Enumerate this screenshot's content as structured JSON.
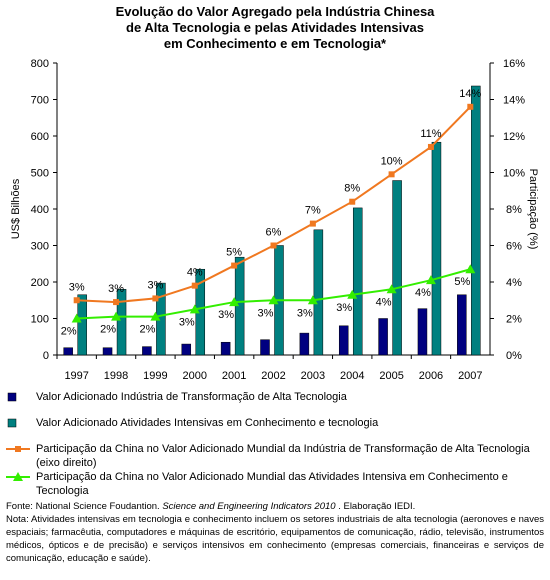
{
  "chart_data": {
    "type": "bar-line",
    "title": [
      "Evolução do Valor Agregado pela Indústria Chinesa",
      "de Alta Tecnologia e pelas Atividades Intensivas",
      "em Conhecimento e em Tecnologia*"
    ],
    "y_label": "US$ Bilhões",
    "y2_label": "Participação (%)",
    "categories": [
      "1997",
      "1998",
      "1999",
      "2000",
      "2001",
      "2002",
      "2003",
      "2004",
      "2005",
      "2006",
      "2007"
    ],
    "ylim": [
      0,
      800
    ],
    "yticks": [
      0,
      100,
      200,
      300,
      400,
      500,
      600,
      700,
      800
    ],
    "y2lim": [
      0,
      16
    ],
    "y2ticks": [
      {
        "value": 0,
        "label": "0%"
      },
      {
        "value": 2,
        "label": "2%"
      },
      {
        "value": 4,
        "label": "4%"
      },
      {
        "value": 6,
        "label": "6%"
      },
      {
        "value": 8,
        "label": "8%"
      },
      {
        "value": 10,
        "label": "10%"
      },
      {
        "value": 12,
        "label": "12%"
      },
      {
        "value": 14,
        "label": "14%"
      },
      {
        "value": 16,
        "label": "16%"
      }
    ],
    "series": [
      {
        "name": "Valor Adicionado Indústria de Transformação de Alta Tecnologia",
        "type": "bar",
        "color": "#000080",
        "values": [
          20,
          20,
          23,
          30,
          35,
          42,
          60,
          80,
          100,
          127,
          165
        ]
      },
      {
        "name": "Valor Adicionado Atividades Intensivas em Conhecimento e tecnologia",
        "type": "bar",
        "color": "#008080",
        "values": [
          165,
          180,
          197,
          235,
          268,
          300,
          343,
          403,
          478,
          583,
          737
        ]
      },
      {
        "name": "Participação da China no Valor Adicionado Mundial da Indústria de Transformação de Alta Tecnologia (eixo direito)",
        "type": "line",
        "axis": "y2",
        "color": "#f07820",
        "marker": "square",
        "values": [
          3.0,
          2.9,
          3.1,
          3.8,
          4.9,
          6.0,
          7.2,
          8.4,
          9.9,
          11.4,
          13.6
        ],
        "value_labels": [
          "3%",
          "3%",
          "3%",
          "4%",
          "5%",
          "6%",
          "7%",
          "8%",
          "10%",
          "11%",
          "14%"
        ]
      },
      {
        "name": "Participação da China no Valor Adicionado Mundial das Atividades Intensiva em Conhecimento e Tecnologia",
        "type": "line",
        "axis": "y2",
        "color": "#33ee00",
        "marker": "triangle",
        "values": [
          2.0,
          2.1,
          2.1,
          2.5,
          2.9,
          3.0,
          3.0,
          3.3,
          3.6,
          4.1,
          4.7
        ],
        "value_labels": [
          "2%",
          "2%",
          "2%",
          "3%",
          "3%",
          "3%",
          "3%",
          "3%",
          "4%",
          "4%",
          "5%"
        ]
      }
    ],
    "source": [
      "Fonte: National Science Foudantion. ",
      "Science and Engineering Indicators 2010",
      " . Elaboração IEDI."
    ],
    "note": "Nota: Atividades intensivas em tecnologia e conhecimento incluem os setores industriais de alta tecnologia (aeronoves e naves espaciais; farmacêutia, computadores e máquinas de escritório, equipamentos de comunicação, rádio, televisão, instrumentos médicos, ópticos e de precisão) e serviços intensivos em conhecimento (empresas comerciais, financeiras e serviços de comunicação, educação e saúde)."
  }
}
